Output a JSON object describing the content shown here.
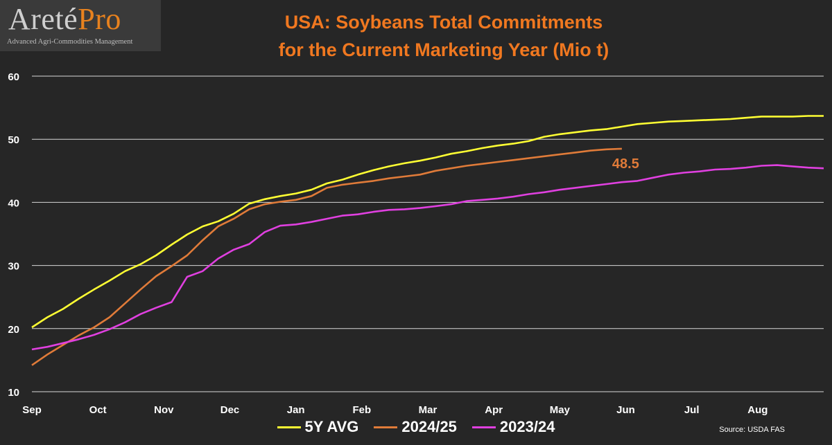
{
  "logo": {
    "name_part1": "Areté",
    "name_part2": "Pro",
    "tagline": "Advanced Agri-Commodities Management"
  },
  "chart_data": {
    "type": "line",
    "title_line1": "USA: Soybeans Total Commitments",
    "title_line2": "for the Current Marketing Year (Mio t)",
    "xlabel": "",
    "ylabel": "",
    "ylim": [
      10,
      60
    ],
    "yticks": [
      10,
      20,
      30,
      40,
      50,
      60
    ],
    "grid": true,
    "months": [
      "Sep",
      "Oct",
      "Nov",
      "Dec",
      "Jan",
      "Feb",
      "Mar",
      "Apr",
      "May",
      "Jun",
      "Jul",
      "Aug"
    ],
    "weeks_total": 52,
    "legend_position": "bottom",
    "series": [
      {
        "name": "5Y AVG",
        "color": "#ffff33",
        "values": [
          20.2,
          21.8,
          23.1,
          24.7,
          26.2,
          27.6,
          29.1,
          30.2,
          31.6,
          33.3,
          34.9,
          36.2,
          37.0,
          38.2,
          39.8,
          40.5,
          41.0,
          41.4,
          42.0,
          43.0,
          43.6,
          44.4,
          45.1,
          45.7,
          46.2,
          46.6,
          47.1,
          47.7,
          48.1,
          48.6,
          49.0,
          49.3,
          49.7,
          50.4,
          50.8,
          51.1,
          51.4,
          51.6,
          52.0,
          52.4,
          52.6,
          52.8,
          52.9,
          53.0,
          53.1,
          53.2,
          53.4,
          53.6,
          53.6,
          53.6,
          53.7,
          53.7
        ]
      },
      {
        "name": "2024/25",
        "color": "#e07b39",
        "values": [
          14.2,
          15.9,
          17.4,
          18.9,
          20.2,
          21.8,
          24.0,
          26.2,
          28.3,
          29.9,
          31.6,
          34.0,
          36.2,
          37.4,
          38.9,
          39.7,
          40.1,
          40.4,
          41.0,
          42.3,
          42.8,
          43.1,
          43.4,
          43.8,
          44.1,
          44.4,
          45.0,
          45.4,
          45.8,
          46.1,
          46.4,
          46.7,
          47.0,
          47.3,
          47.6,
          47.9,
          48.2,
          48.4,
          48.5
        ],
        "end_label": "48.5"
      },
      {
        "name": "2023/24",
        "color": "#e040e0",
        "values": [
          16.7,
          17.1,
          17.7,
          18.3,
          19.0,
          19.9,
          21.0,
          22.3,
          23.3,
          24.2,
          28.2,
          29.1,
          31.1,
          32.5,
          33.4,
          35.3,
          36.3,
          36.5,
          36.9,
          37.4,
          37.9,
          38.1,
          38.5,
          38.8,
          38.9,
          39.1,
          39.4,
          39.7,
          40.2,
          40.4,
          40.6,
          40.9,
          41.3,
          41.6,
          42.0,
          42.3,
          42.6,
          42.9,
          43.2,
          43.4,
          43.9,
          44.4,
          44.7,
          44.9,
          45.2,
          45.3,
          45.5,
          45.8,
          45.9,
          45.7,
          45.5,
          45.4
        ]
      }
    ],
    "source": "Source:  USDA FAS"
  }
}
